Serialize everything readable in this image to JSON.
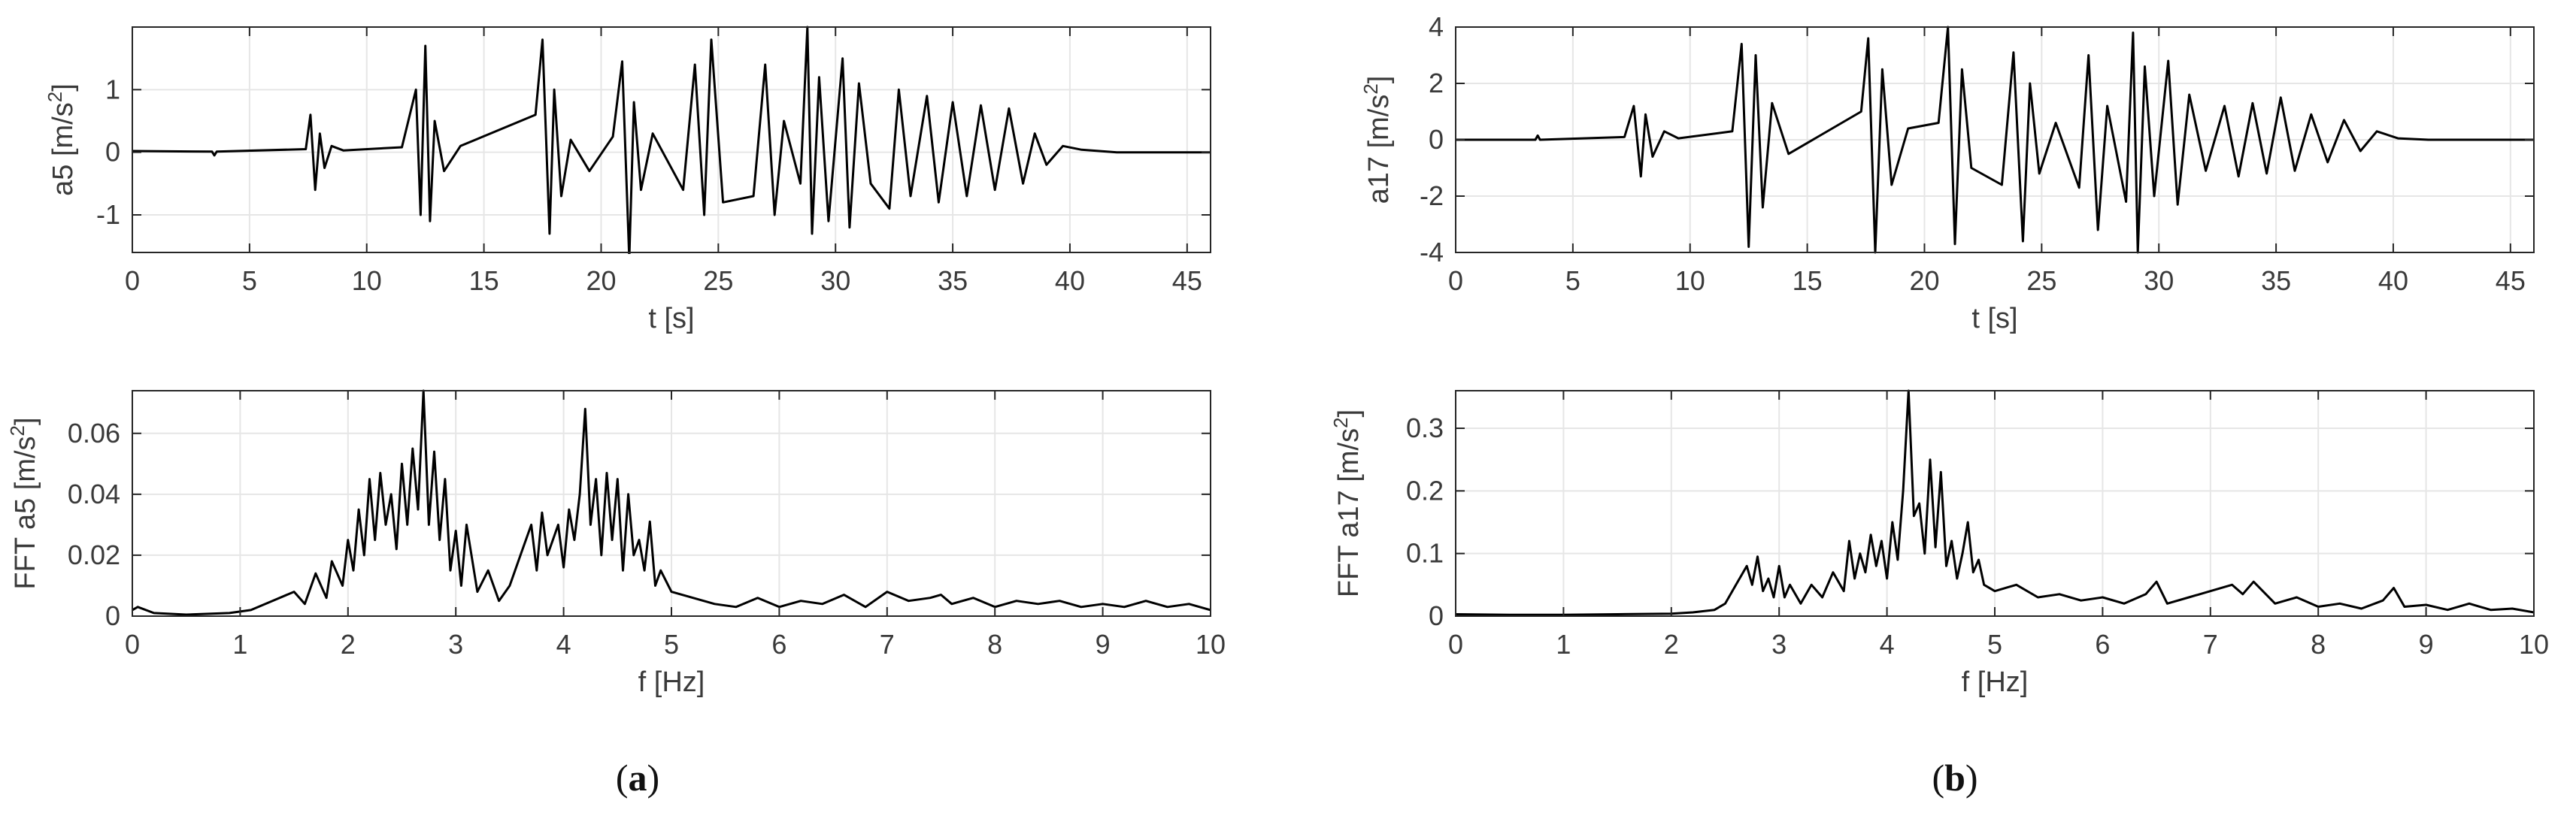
{
  "chart_data": [
    {
      "id": "a5_time",
      "type": "line",
      "ylabel_base": "a5 [m/s",
      "ylabel_sup": "2",
      "ylabel_close": "]",
      "xlabel": "t [s]",
      "xlim": [
        0,
        46
      ],
      "ylim": [
        -1.6,
        2.0
      ],
      "xticks": [
        0,
        5,
        10,
        15,
        20,
        25,
        30,
        35,
        40,
        45
      ],
      "xtick_labels": [
        "0",
        "5",
        "10",
        "15",
        "20",
        "25",
        "30",
        "35",
        "40",
        "45"
      ],
      "yticks": [
        -1,
        0,
        1
      ],
      "ytick_labels": [
        "-1",
        "0",
        "1"
      ],
      "grid": true,
      "series": [
        {
          "x": [
            0,
            3.4,
            3.5,
            3.6,
            7.4,
            7.6,
            7.8,
            8.0,
            8.2,
            8.5,
            9.0,
            11.5,
            12.1,
            12.3,
            12.5,
            12.7,
            12.9,
            13.3,
            14.0,
            17.2,
            17.5,
            17.8,
            18.0,
            18.3,
            18.7,
            19.5,
            20.5,
            20.9,
            21.2,
            21.4,
            21.7,
            22.2,
            23.5,
            24.0,
            24.4,
            24.7,
            25.2,
            26.5,
            27.0,
            27.4,
            27.8,
            28.5,
            28.8,
            29.0,
            29.3,
            29.7,
            30.3,
            30.6,
            31.0,
            31.5,
            32.3,
            32.7,
            33.2,
            33.9,
            34.4,
            35.0,
            35.6,
            36.2,
            36.8,
            37.4,
            38.0,
            38.5,
            39.0,
            39.7,
            40.5,
            42.0,
            44.0,
            46.0
          ],
          "y": [
            0.02,
            0.01,
            -0.05,
            0.01,
            0.05,
            0.6,
            -0.6,
            0.3,
            -0.25,
            0.1,
            0.03,
            0.08,
            1.0,
            -1.0,
            1.7,
            -1.1,
            0.5,
            -0.3,
            0.1,
            0.6,
            1.8,
            -1.3,
            1.0,
            -0.7,
            0.2,
            -0.3,
            0.25,
            1.45,
            -1.7,
            0.8,
            -0.6,
            0.3,
            -0.6,
            1.4,
            -1.0,
            1.8,
            -0.8,
            -0.7,
            1.4,
            -1.0,
            0.5,
            -0.5,
            2.0,
            -1.3,
            1.2,
            -1.1,
            1.5,
            -1.2,
            1.1,
            -0.5,
            -0.9,
            1.0,
            -0.7,
            0.9,
            -0.8,
            0.8,
            -0.7,
            0.75,
            -0.6,
            0.7,
            -0.5,
            0.3,
            -0.2,
            0.1,
            0.04,
            0.0,
            0.0,
            0.0
          ]
        }
      ]
    },
    {
      "id": "a17_time",
      "type": "line",
      "ylabel_base": "a17 [m/s",
      "ylabel_sup": "2",
      "ylabel_close": "]",
      "xlabel": "t [s]",
      "xlim": [
        0,
        46
      ],
      "ylim": [
        -4,
        4
      ],
      "xticks": [
        0,
        5,
        10,
        15,
        20,
        25,
        30,
        35,
        40,
        45
      ],
      "xtick_labels": [
        "0",
        "5",
        "10",
        "15",
        "20",
        "25",
        "30",
        "35",
        "40",
        "45"
      ],
      "yticks": [
        -4,
        -2,
        0,
        2,
        4
      ],
      "ytick_labels": [
        "-4",
        "-2",
        "0",
        "2",
        "4"
      ],
      "grid": true,
      "series": [
        {
          "x": [
            0,
            3.4,
            3.5,
            3.6,
            7.2,
            7.6,
            7.9,
            8.1,
            8.4,
            8.9,
            9.5,
            11.8,
            12.2,
            12.5,
            12.8,
            13.1,
            13.5,
            14.2,
            17.3,
            17.6,
            17.9,
            18.2,
            18.6,
            19.3,
            20.6,
            21.0,
            21.3,
            21.6,
            22.0,
            23.3,
            23.8,
            24.2,
            24.5,
            24.9,
            25.6,
            26.6,
            27.0,
            27.4,
            27.8,
            28.6,
            28.9,
            29.1,
            29.4,
            29.8,
            30.4,
            30.8,
            31.3,
            32.0,
            32.8,
            33.4,
            34.0,
            34.6,
            35.2,
            35.8,
            36.5,
            37.2,
            37.9,
            38.6,
            39.3,
            40.2,
            41.5,
            43.5,
            46.0
          ],
          "y": [
            0.0,
            0.0,
            0.15,
            0.0,
            0.1,
            1.2,
            -1.3,
            0.9,
            -0.6,
            0.3,
            0.05,
            0.3,
            3.4,
            -3.8,
            3.0,
            -2.4,
            1.3,
            -0.5,
            1.0,
            3.6,
            -4.0,
            2.5,
            -1.6,
            0.4,
            0.6,
            4.0,
            -3.7,
            2.5,
            -1.0,
            -1.6,
            3.1,
            -3.6,
            2.0,
            -1.2,
            0.6,
            -1.7,
            3.0,
            -3.2,
            1.2,
            -2.2,
            3.8,
            -4.0,
            2.6,
            -2.0,
            2.8,
            -2.3,
            1.6,
            -1.1,
            1.2,
            -1.3,
            1.3,
            -1.2,
            1.5,
            -1.1,
            0.9,
            -0.8,
            0.7,
            -0.4,
            0.3,
            0.05,
            0.0,
            0.0,
            0.0
          ]
        }
      ]
    },
    {
      "id": "a5_fft",
      "type": "line",
      "ylabel_base": "FFT a5 [m/s",
      "ylabel_sup": "2",
      "ylabel_close": "]",
      "xlabel": "f [Hz]",
      "xlim": [
        0,
        10
      ],
      "ylim": [
        0,
        0.074
      ],
      "xticks": [
        0,
        1,
        2,
        3,
        4,
        5,
        6,
        7,
        8,
        9,
        10
      ],
      "xtick_labels": [
        "0",
        "1",
        "2",
        "3",
        "4",
        "5",
        "6",
        "7",
        "8",
        "9",
        "10"
      ],
      "yticks": [
        0,
        0.02,
        0.04,
        0.06
      ],
      "ytick_labels": [
        "0",
        "0.02",
        "0.04",
        "0.06"
      ],
      "grid": true,
      "series": [
        {
          "x": [
            0.0,
            0.05,
            0.2,
            0.5,
            0.9,
            1.1,
            1.3,
            1.5,
            1.6,
            1.7,
            1.8,
            1.85,
            1.95,
            2.0,
            2.05,
            2.1,
            2.15,
            2.2,
            2.25,
            2.3,
            2.35,
            2.4,
            2.45,
            2.5,
            2.55,
            2.6,
            2.65,
            2.7,
            2.75,
            2.8,
            2.85,
            2.9,
            2.95,
            3.0,
            3.05,
            3.1,
            3.2,
            3.3,
            3.4,
            3.5,
            3.6,
            3.7,
            3.75,
            3.8,
            3.85,
            3.9,
            3.95,
            4.0,
            4.05,
            4.1,
            4.15,
            4.2,
            4.25,
            4.3,
            4.35,
            4.4,
            4.45,
            4.5,
            4.55,
            4.6,
            4.65,
            4.7,
            4.75,
            4.8,
            4.85,
            4.9,
            5.0,
            5.2,
            5.4,
            5.6,
            5.8,
            6.0,
            6.2,
            6.4,
            6.6,
            6.8,
            7.0,
            7.2,
            7.4,
            7.5,
            7.6,
            7.8,
            8.0,
            8.2,
            8.4,
            8.6,
            8.8,
            9.0,
            9.2,
            9.4,
            9.6,
            9.8,
            10.0
          ],
          "y": [
            0.002,
            0.003,
            0.001,
            0.0005,
            0.001,
            0.002,
            0.005,
            0.008,
            0.004,
            0.014,
            0.006,
            0.018,
            0.01,
            0.025,
            0.015,
            0.035,
            0.02,
            0.045,
            0.025,
            0.047,
            0.03,
            0.04,
            0.022,
            0.05,
            0.03,
            0.055,
            0.035,
            0.074,
            0.03,
            0.054,
            0.025,
            0.045,
            0.015,
            0.028,
            0.01,
            0.03,
            0.008,
            0.015,
            0.005,
            0.01,
            0.02,
            0.03,
            0.015,
            0.034,
            0.02,
            0.025,
            0.03,
            0.016,
            0.035,
            0.025,
            0.04,
            0.068,
            0.03,
            0.045,
            0.02,
            0.047,
            0.025,
            0.045,
            0.015,
            0.04,
            0.02,
            0.025,
            0.015,
            0.031,
            0.01,
            0.015,
            0.008,
            0.006,
            0.004,
            0.003,
            0.006,
            0.003,
            0.005,
            0.004,
            0.007,
            0.003,
            0.008,
            0.005,
            0.006,
            0.007,
            0.004,
            0.006,
            0.003,
            0.005,
            0.004,
            0.005,
            0.003,
            0.004,
            0.003,
            0.005,
            0.003,
            0.004,
            0.002
          ]
        }
      ]
    },
    {
      "id": "a17_fft",
      "type": "line",
      "ylabel_base": "FFT a17 [m/s",
      "ylabel_sup": "2",
      "ylabel_close": "]",
      "xlabel": "f [Hz]",
      "xlim": [
        0,
        10
      ],
      "ylim": [
        0,
        0.36
      ],
      "xticks": [
        0,
        1,
        2,
        3,
        4,
        5,
        6,
        7,
        8,
        9,
        10
      ],
      "xtick_labels": [
        "0",
        "1",
        "2",
        "3",
        "4",
        "5",
        "6",
        "7",
        "8",
        "9",
        "10"
      ],
      "yticks": [
        0,
        0.1,
        0.2,
        0.3
      ],
      "ytick_labels": [
        "0",
        "0.1",
        "0.2",
        "0.3"
      ],
      "grid": true,
      "series": [
        {
          "x": [
            0.0,
            0.5,
            1.0,
            1.5,
            2.0,
            2.2,
            2.4,
            2.5,
            2.6,
            2.7,
            2.75,
            2.8,
            2.85,
            2.9,
            2.95,
            3.0,
            3.05,
            3.1,
            3.2,
            3.3,
            3.4,
            3.5,
            3.6,
            3.65,
            3.7,
            3.75,
            3.8,
            3.85,
            3.9,
            3.95,
            4.0,
            4.05,
            4.1,
            4.15,
            4.2,
            4.25,
            4.3,
            4.35,
            4.4,
            4.45,
            4.5,
            4.55,
            4.6,
            4.65,
            4.7,
            4.75,
            4.8,
            4.85,
            4.9,
            5.0,
            5.2,
            5.4,
            5.6,
            5.8,
            6.0,
            6.2,
            6.4,
            6.5,
            6.6,
            6.8,
            7.0,
            7.2,
            7.3,
            7.4,
            7.6,
            7.8,
            8.0,
            8.2,
            8.4,
            8.6,
            8.7,
            8.8,
            9.0,
            9.2,
            9.4,
            9.6,
            9.8,
            10.0
          ],
          "y": [
            0.003,
            0.002,
            0.002,
            0.003,
            0.004,
            0.006,
            0.01,
            0.02,
            0.05,
            0.08,
            0.05,
            0.095,
            0.04,
            0.06,
            0.03,
            0.08,
            0.03,
            0.05,
            0.02,
            0.05,
            0.03,
            0.07,
            0.04,
            0.12,
            0.06,
            0.1,
            0.07,
            0.13,
            0.08,
            0.12,
            0.06,
            0.15,
            0.09,
            0.2,
            0.36,
            0.16,
            0.18,
            0.1,
            0.25,
            0.11,
            0.23,
            0.08,
            0.12,
            0.06,
            0.1,
            0.15,
            0.07,
            0.09,
            0.05,
            0.04,
            0.05,
            0.03,
            0.035,
            0.025,
            0.03,
            0.02,
            0.035,
            0.055,
            0.02,
            0.03,
            0.04,
            0.05,
            0.035,
            0.055,
            0.02,
            0.03,
            0.015,
            0.02,
            0.012,
            0.025,
            0.045,
            0.015,
            0.018,
            0.01,
            0.02,
            0.01,
            0.012,
            0.006
          ]
        }
      ]
    }
  ],
  "captions": {
    "a": "a",
    "b": "b"
  }
}
